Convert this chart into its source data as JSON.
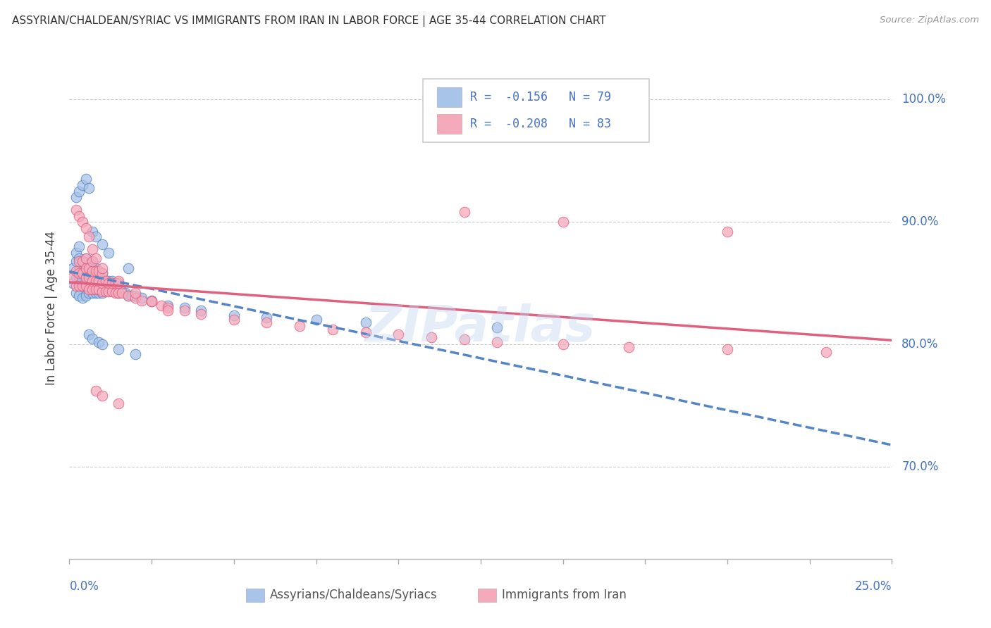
{
  "title": "ASSYRIAN/CHALDEAN/SYRIAC VS IMMIGRANTS FROM IRAN IN LABOR FORCE | AGE 35-44 CORRELATION CHART",
  "source": "Source: ZipAtlas.com",
  "ylabel": "In Labor Force | Age 35-44",
  "yaxis_labels": [
    "100.0%",
    "90.0%",
    "80.0%",
    "70.0%"
  ],
  "yaxis_values": [
    1.0,
    0.9,
    0.8,
    0.7
  ],
  "xlim": [
    0.0,
    0.25
  ],
  "ylim": [
    0.625,
    1.035
  ],
  "color_blue": "#a8c4e8",
  "color_pink": "#f5aabc",
  "color_blue_line": "#5585c5",
  "color_pink_line": "#e06080",
  "color_blue_text": "#4472c4",
  "legend_label1": "Assyrians/Chaldeans/Syriacs",
  "legend_label2": "Immigrants from Iran",
  "watermark": "ZIPatlas",
  "blue_x": [
    0.001,
    0.001,
    0.002,
    0.002,
    0.002,
    0.002,
    0.003,
    0.003,
    0.003,
    0.003,
    0.003,
    0.004,
    0.004,
    0.004,
    0.004,
    0.005,
    0.005,
    0.005,
    0.005,
    0.005,
    0.006,
    0.006,
    0.006,
    0.006,
    0.007,
    0.007,
    0.007,
    0.007,
    0.007,
    0.008,
    0.008,
    0.008,
    0.008,
    0.009,
    0.009,
    0.009,
    0.01,
    0.01,
    0.01,
    0.011,
    0.011,
    0.012,
    0.012,
    0.013,
    0.013,
    0.014,
    0.015,
    0.015,
    0.016,
    0.017,
    0.018,
    0.019,
    0.02,
    0.022,
    0.025,
    0.03,
    0.035,
    0.04,
    0.05,
    0.06,
    0.075,
    0.09,
    0.13,
    0.002,
    0.003,
    0.004,
    0.005,
    0.006,
    0.007,
    0.008,
    0.01,
    0.012,
    0.018,
    0.006,
    0.007,
    0.009,
    0.01,
    0.015,
    0.02
  ],
  "blue_y": [
    0.85,
    0.862,
    0.842,
    0.855,
    0.868,
    0.875,
    0.84,
    0.852,
    0.86,
    0.87,
    0.88,
    0.838,
    0.848,
    0.858,
    0.868,
    0.84,
    0.848,
    0.855,
    0.862,
    0.87,
    0.842,
    0.85,
    0.858,
    0.865,
    0.842,
    0.848,
    0.855,
    0.862,
    0.868,
    0.842,
    0.848,
    0.855,
    0.862,
    0.842,
    0.85,
    0.858,
    0.842,
    0.85,
    0.858,
    0.845,
    0.852,
    0.845,
    0.852,
    0.845,
    0.852,
    0.843,
    0.842,
    0.85,
    0.843,
    0.842,
    0.84,
    0.84,
    0.84,
    0.838,
    0.836,
    0.832,
    0.83,
    0.828,
    0.824,
    0.822,
    0.82,
    0.818,
    0.814,
    0.92,
    0.925,
    0.93,
    0.935,
    0.928,
    0.892,
    0.888,
    0.882,
    0.875,
    0.862,
    0.808,
    0.805,
    0.802,
    0.8,
    0.796,
    0.792
  ],
  "pink_x": [
    0.001,
    0.002,
    0.002,
    0.003,
    0.003,
    0.003,
    0.004,
    0.004,
    0.004,
    0.005,
    0.005,
    0.005,
    0.005,
    0.006,
    0.006,
    0.006,
    0.007,
    0.007,
    0.007,
    0.007,
    0.008,
    0.008,
    0.008,
    0.009,
    0.009,
    0.009,
    0.01,
    0.01,
    0.01,
    0.011,
    0.011,
    0.012,
    0.012,
    0.013,
    0.013,
    0.014,
    0.014,
    0.015,
    0.015,
    0.016,
    0.018,
    0.02,
    0.022,
    0.025,
    0.028,
    0.03,
    0.035,
    0.04,
    0.05,
    0.06,
    0.07,
    0.08,
    0.09,
    0.1,
    0.11,
    0.12,
    0.13,
    0.15,
    0.17,
    0.2,
    0.23,
    0.002,
    0.003,
    0.004,
    0.005,
    0.006,
    0.007,
    0.008,
    0.01,
    0.015,
    0.02,
    0.025,
    0.03,
    0.008,
    0.01,
    0.015,
    0.12,
    0.15,
    0.2
  ],
  "pink_y": [
    0.855,
    0.848,
    0.86,
    0.848,
    0.858,
    0.868,
    0.848,
    0.858,
    0.868,
    0.848,
    0.855,
    0.862,
    0.87,
    0.845,
    0.855,
    0.862,
    0.845,
    0.852,
    0.86,
    0.868,
    0.845,
    0.852,
    0.86,
    0.845,
    0.852,
    0.86,
    0.843,
    0.85,
    0.858,
    0.843,
    0.852,
    0.843,
    0.85,
    0.843,
    0.85,
    0.842,
    0.85,
    0.842,
    0.85,
    0.842,
    0.84,
    0.838,
    0.836,
    0.835,
    0.832,
    0.83,
    0.828,
    0.825,
    0.82,
    0.818,
    0.815,
    0.812,
    0.81,
    0.808,
    0.806,
    0.804,
    0.802,
    0.8,
    0.798,
    0.796,
    0.794,
    0.91,
    0.905,
    0.9,
    0.895,
    0.888,
    0.878,
    0.87,
    0.862,
    0.852,
    0.842,
    0.835,
    0.828,
    0.762,
    0.758,
    0.752,
    0.908,
    0.9,
    0.892
  ]
}
